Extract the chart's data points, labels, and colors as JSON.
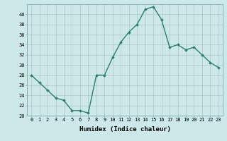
{
  "x": [
    0,
    1,
    2,
    3,
    4,
    5,
    6,
    7,
    8,
    9,
    10,
    11,
    12,
    13,
    14,
    15,
    16,
    17,
    18,
    19,
    20,
    21,
    22,
    23
  ],
  "y": [
    28,
    26.5,
    25,
    23.5,
    23,
    21,
    21,
    20.5,
    28,
    28,
    31.5,
    34.5,
    36.5,
    38,
    41,
    41.5,
    39,
    33.5,
    34,
    33,
    33.5,
    32,
    30.5,
    29.5
  ],
  "xlabel": "Humidex (Indice chaleur)",
  "line_color": "#2e7d6e",
  "marker": "D",
  "marker_size": 1.8,
  "background_color": "#cce8e8",
  "grid_color": "#aac8c8",
  "ylim": [
    20,
    42
  ],
  "xlim": [
    -0.5,
    23.5
  ],
  "yticks": [
    20,
    22,
    24,
    26,
    28,
    30,
    32,
    34,
    36,
    38,
    40
  ],
  "xticks": [
    0,
    1,
    2,
    3,
    4,
    5,
    6,
    7,
    8,
    9,
    10,
    11,
    12,
    13,
    14,
    15,
    16,
    17,
    18,
    19,
    20,
    21,
    22,
    23
  ],
  "tick_fontsize": 5.0,
  "xlabel_fontsize": 6.5,
  "linewidth": 1.0
}
